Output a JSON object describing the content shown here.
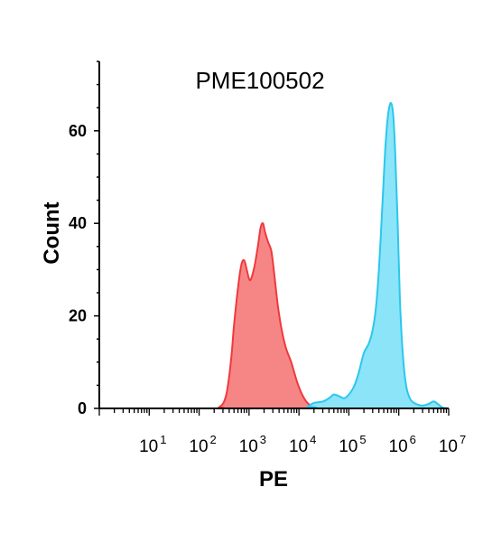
{
  "chart_data": {
    "type": "area",
    "title": "PME100502",
    "xlabel": "PE",
    "ylabel": "Count",
    "x_scale": "log",
    "xlim": [
      1,
      10000000
    ],
    "ylim": [
      0,
      75
    ],
    "y_ticks": [
      "0",
      "20",
      "40",
      "60"
    ],
    "y_tick_values": [
      0,
      20,
      40,
      60
    ],
    "x_tick_labels": [
      {
        "value": 10,
        "base": "10",
        "exp": "1"
      },
      {
        "value": 100,
        "base": "10",
        "exp": "2"
      },
      {
        "value": 1000,
        "base": "10",
        "exp": "3"
      },
      {
        "value": 10000,
        "base": "10",
        "exp": "4"
      },
      {
        "value": 100000,
        "base": "10",
        "exp": "5"
      },
      {
        "value": 1000000,
        "base": "10",
        "exp": "6"
      },
      {
        "value": 10000000,
        "base": "10",
        "exp": "7"
      }
    ],
    "grid": false,
    "series": [
      {
        "color": "#f57f7f",
        "stroke": "#f0393c",
        "points": [
          [
            1,
            0
          ],
          [
            200,
            0
          ],
          [
            250,
            0.3
          ],
          [
            300,
            1
          ],
          [
            350,
            3
          ],
          [
            400,
            7
          ],
          [
            450,
            12
          ],
          [
            500,
            18
          ],
          [
            600,
            26
          ],
          [
            700,
            31
          ],
          [
            800,
            32
          ],
          [
            900,
            30
          ],
          [
            1000,
            28
          ],
          [
            1100,
            28
          ],
          [
            1300,
            31
          ],
          [
            1500,
            35
          ],
          [
            1700,
            39
          ],
          [
            1900,
            40
          ],
          [
            2100,
            38
          ],
          [
            2400,
            36
          ],
          [
            2800,
            34
          ],
          [
            3200,
            29
          ],
          [
            3800,
            22
          ],
          [
            4500,
            17
          ],
          [
            5500,
            13
          ],
          [
            7000,
            10
          ],
          [
            9000,
            6
          ],
          [
            11000,
            3.5
          ],
          [
            14000,
            1.5
          ],
          [
            18000,
            0.5
          ],
          [
            25000,
            0.1
          ],
          [
            35000,
            0
          ],
          [
            10000000,
            0
          ]
        ]
      },
      {
        "color": "#85e3f7",
        "stroke": "#2bc7ee",
        "points": [
          [
            1,
            0
          ],
          [
            10000,
            0
          ],
          [
            15000,
            0.5
          ],
          [
            20000,
            1.2
          ],
          [
            30000,
            1.5
          ],
          [
            40000,
            2.2
          ],
          [
            50000,
            3
          ],
          [
            65000,
            2.6
          ],
          [
            80000,
            2.2
          ],
          [
            100000,
            3
          ],
          [
            130000,
            5
          ],
          [
            160000,
            8
          ],
          [
            200000,
            12
          ],
          [
            250000,
            14
          ],
          [
            300000,
            17
          ],
          [
            350000,
            22
          ],
          [
            400000,
            30
          ],
          [
            450000,
            40
          ],
          [
            500000,
            50
          ],
          [
            550000,
            58
          ],
          [
            620000,
            64
          ],
          [
            700000,
            66
          ],
          [
            780000,
            63
          ],
          [
            850000,
            55
          ],
          [
            950000,
            40
          ],
          [
            1050000,
            24
          ],
          [
            1200000,
            12
          ],
          [
            1400000,
            5
          ],
          [
            1700000,
            2
          ],
          [
            2200000,
            1
          ],
          [
            3000000,
            0.6
          ],
          [
            4000000,
            1
          ],
          [
            5000000,
            1.5
          ],
          [
            6000000,
            1
          ],
          [
            7500000,
            0.2
          ],
          [
            10000000,
            0
          ]
        ]
      }
    ]
  }
}
